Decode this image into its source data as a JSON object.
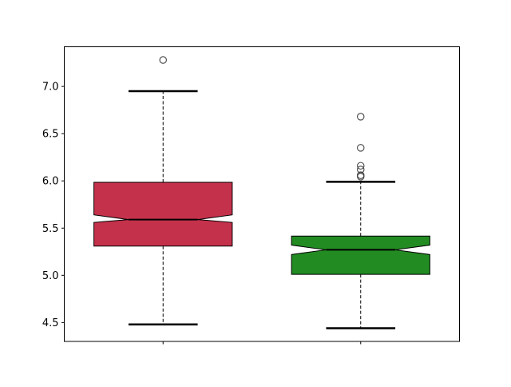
{
  "chart_data": {
    "type": "boxplot",
    "notched": true,
    "title": "",
    "xlabel": "",
    "ylabel": "",
    "xlim": [
      0.5,
      2.5
    ],
    "ylim": [
      4.3,
      7.42
    ],
    "yticks": [
      "4.5",
      "5.0",
      "5.5",
      "6.0",
      "6.5",
      "7.0"
    ],
    "grid": false,
    "boxes": [
      {
        "position": 1,
        "color": "#c4314b",
        "whisker_low": 4.48,
        "q1": 5.31,
        "notch_low": 5.56,
        "median": 5.59,
        "notch_high": 5.64,
        "q3": 5.985,
        "whisker_high": 6.95,
        "outliers": [
          7.28
        ]
      },
      {
        "position": 2,
        "color": "#228b22",
        "whisker_low": 4.44,
        "q1": 5.01,
        "notch_low": 5.22,
        "median": 5.27,
        "notch_high": 5.32,
        "q3": 5.415,
        "whisker_high": 5.99,
        "outliers": [
          6.68,
          6.35,
          6.16,
          6.12,
          6.06,
          6.045
        ]
      }
    ]
  }
}
